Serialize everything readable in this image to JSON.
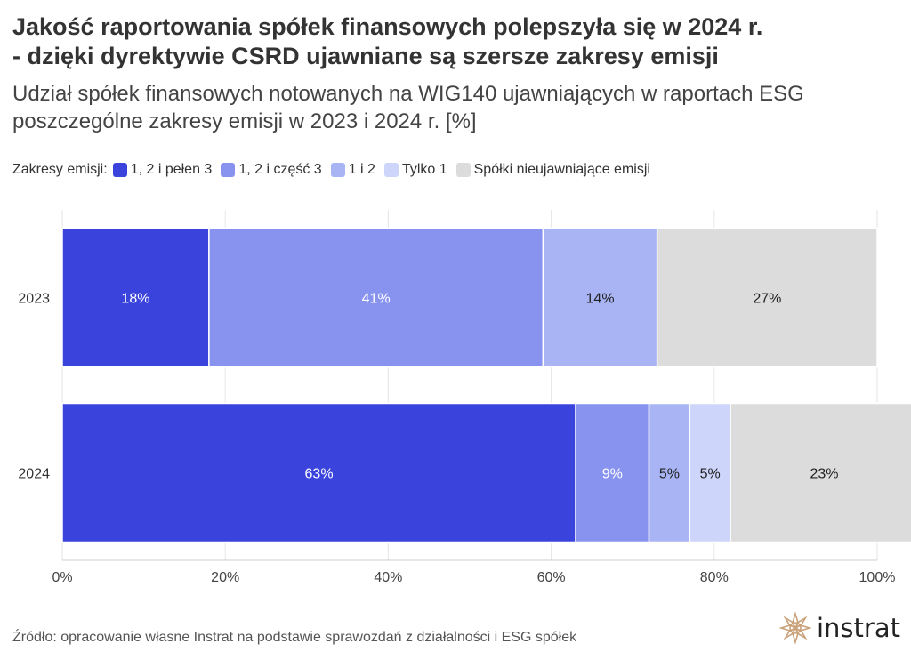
{
  "title_line1": "Jakość raportowania spółek finansowych polepszyła się w 2024 r.",
  "title_line2": "-  dzięki dyrektywie CSRD ujawniane są szersze zakresy emisji",
  "subtitle": "Udział spółek finansowych notowanych na WIG140 ujawniających w raportach ESG poszczególne zakresy emisji w 2023 i 2024 r. [%]",
  "legend_title": "Zakresy emisji:",
  "source": "Źródło: opracowanie własne Instrat na podstawie sprawozdań z działalności i ESG spółek",
  "logo_text": "instrat",
  "chart_data": {
    "type": "bar",
    "orientation": "horizontal",
    "stacked": true,
    "categories": [
      "2023",
      "2024"
    ],
    "series": [
      {
        "name": "1, 2 i pełen 3",
        "color": "#3a44dc",
        "label_color": "#ffffff",
        "values": [
          18,
          63
        ],
        "labels": [
          "18%",
          "63%"
        ]
      },
      {
        "name": "1, 2 i część 3",
        "color": "#8793ef",
        "label_color": "#ffffff",
        "values": [
          41,
          9
        ],
        "labels": [
          "41%",
          "9%"
        ]
      },
      {
        "name": "1 i 2",
        "color": "#a9b4f5",
        "label_color": "#222222",
        "values": [
          14,
          5
        ],
        "labels": [
          "14%",
          "5%"
        ]
      },
      {
        "name": "Tylko 1",
        "color": "#cdd5fa",
        "label_color": "#222222",
        "values": [
          0,
          5
        ],
        "labels": [
          "",
          "5%"
        ]
      },
      {
        "name": "Spółki nieujawniające emisji",
        "color": "#dcdcdc",
        "label_color": "#222222",
        "values": [
          27,
          23
        ],
        "labels": [
          "27%",
          "23%"
        ]
      }
    ],
    "xlim": [
      0,
      100
    ],
    "xticks": [
      "0%",
      "20%",
      "40%",
      "60%",
      "80%",
      "100%"
    ],
    "xtick_values": [
      0,
      20,
      40,
      60,
      80,
      100
    ],
    "xlabel": "",
    "ylabel": ""
  }
}
